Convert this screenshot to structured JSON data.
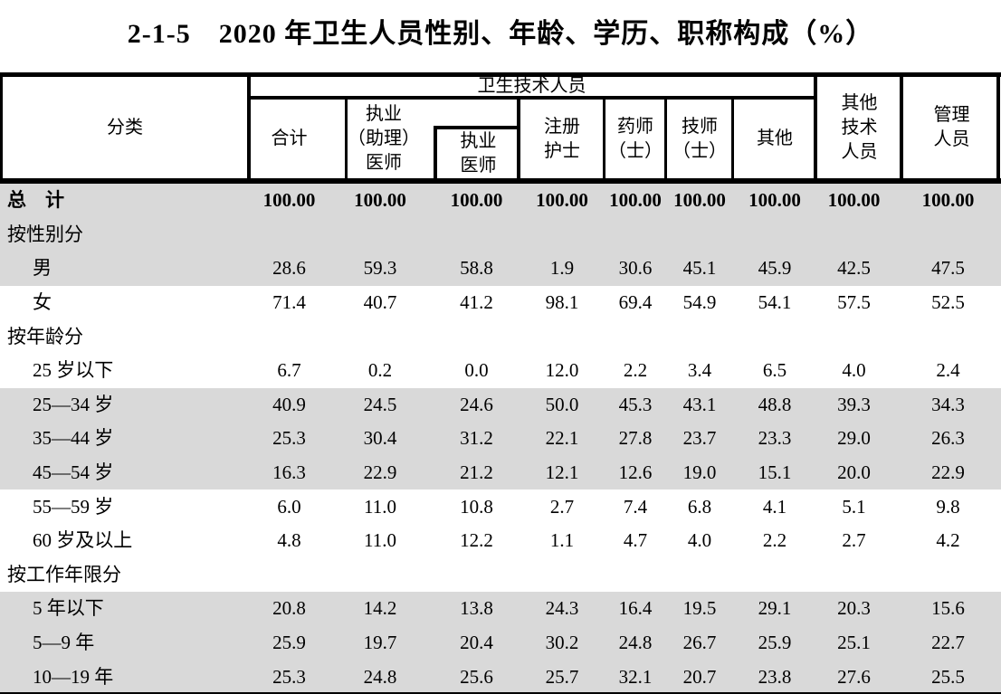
{
  "title": "2-1-5　2020 年卫生人员性别、年龄、学历、职称构成（%）",
  "colors": {
    "shade": "#d9d9d9",
    "border": "#000000",
    "background": "#ffffff"
  },
  "table": {
    "header": {
      "classification": "分类",
      "group": "卫生技术人员",
      "total": "合计",
      "licensed_assistant_physician": "执业\n（助理）\n医师",
      "licensed_physician": "执业\n医师",
      "registered_nurse": "注册\n护士",
      "pharmacist": "药师\n（士）",
      "technician": "技师\n（士）",
      "other": "其他",
      "other_technical": "其他\n技术\n人员",
      "management": "管理\n人员"
    },
    "rows": [
      {
        "label": "总　计",
        "type": "total",
        "shade": true,
        "values": [
          "100.00",
          "100.00",
          "100.00",
          "100.00",
          "100.00",
          "100.00",
          "100.00",
          "100.00",
          "100.00"
        ]
      },
      {
        "label": "按性别分",
        "type": "section",
        "shade": true,
        "values": []
      },
      {
        "label": "男",
        "type": "item",
        "shade": true,
        "values": [
          "28.6",
          "59.3",
          "58.8",
          "1.9",
          "30.6",
          "45.1",
          "45.9",
          "42.5",
          "47.5"
        ]
      },
      {
        "label": "女",
        "type": "item",
        "shade": false,
        "values": [
          "71.4",
          "40.7",
          "41.2",
          "98.1",
          "69.4",
          "54.9",
          "54.1",
          "57.5",
          "52.5"
        ]
      },
      {
        "label": "按年龄分",
        "type": "section",
        "shade": false,
        "values": []
      },
      {
        "label": "25 岁以下",
        "type": "item",
        "shade": false,
        "values": [
          "6.7",
          "0.2",
          "0.0",
          "12.0",
          "2.2",
          "3.4",
          "6.5",
          "4.0",
          "2.4"
        ]
      },
      {
        "label": "25—34 岁",
        "type": "item",
        "shade": true,
        "values": [
          "40.9",
          "24.5",
          "24.6",
          "50.0",
          "45.3",
          "43.1",
          "48.8",
          "39.3",
          "34.3"
        ]
      },
      {
        "label": "35—44 岁",
        "type": "item",
        "shade": true,
        "values": [
          "25.3",
          "30.4",
          "31.2",
          "22.1",
          "27.8",
          "23.7",
          "23.3",
          "29.0",
          "26.3"
        ]
      },
      {
        "label": "45—54 岁",
        "type": "item",
        "shade": true,
        "values": [
          "16.3",
          "22.9",
          "21.2",
          "12.1",
          "12.6",
          "19.0",
          "15.1",
          "20.0",
          "22.9"
        ]
      },
      {
        "label": "55—59 岁",
        "type": "item",
        "shade": false,
        "values": [
          "6.0",
          "11.0",
          "10.8",
          "2.7",
          "7.4",
          "6.8",
          "4.1",
          "5.1",
          "9.8"
        ]
      },
      {
        "label": "60 岁及以上",
        "type": "item",
        "shade": false,
        "values": [
          "4.8",
          "11.0",
          "12.2",
          "1.1",
          "4.7",
          "4.0",
          "2.2",
          "2.7",
          "4.2"
        ]
      },
      {
        "label": "按工作年限分",
        "type": "section",
        "shade": false,
        "values": []
      },
      {
        "label": "5 年以下",
        "type": "item",
        "shade": true,
        "values": [
          "20.8",
          "14.2",
          "13.8",
          "24.3",
          "16.4",
          "19.5",
          "29.1",
          "20.3",
          "15.6"
        ]
      },
      {
        "label": "5—9 年",
        "type": "item",
        "shade": true,
        "values": [
          "25.9",
          "19.7",
          "20.4",
          "30.2",
          "24.8",
          "26.7",
          "25.9",
          "25.1",
          "22.7"
        ]
      },
      {
        "label": "10—19 年",
        "type": "item",
        "shade": true,
        "values": [
          "25.3",
          "24.8",
          "25.6",
          "25.7",
          "32.1",
          "20.7",
          "23.8",
          "27.6",
          "25.5"
        ]
      }
    ]
  }
}
